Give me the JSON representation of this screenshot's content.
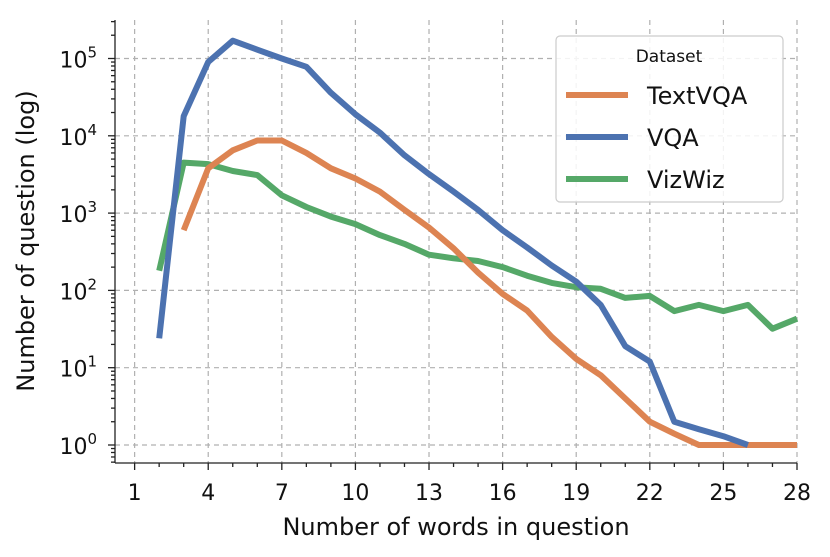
{
  "chart_data": {
    "type": "line",
    "xlabel": "Number of words in question",
    "ylabel": "Number of question (log)",
    "yscale": "log",
    "xlim": [
      0.2,
      28
    ],
    "ylim_exponent": [
      -0.23,
      0.6
    ],
    "x_ticks": [
      1,
      4,
      7,
      10,
      13,
      16,
      19,
      22,
      25,
      28
    ],
    "y_ticks": [
      {
        "value": 1,
        "base": "10",
        "exp": "0"
      },
      {
        "value": 10,
        "base": "10",
        "exp": "1"
      },
      {
        "value": 100,
        "base": "10",
        "exp": "2"
      },
      {
        "value": 1000,
        "base": "10",
        "exp": "3"
      },
      {
        "value": 10000,
        "base": "10",
        "exp": "4"
      },
      {
        "value": 100000,
        "base": "10",
        "exp": "5"
      }
    ],
    "grid": true,
    "legend": {
      "title": "Dataset",
      "position": "top-right"
    },
    "series": [
      {
        "name": "TextVQA",
        "color": "#dd8452",
        "x": [
          3,
          4,
          5,
          6,
          7,
          8,
          9,
          10,
          11,
          12,
          13,
          14,
          15,
          16,
          17,
          18,
          19,
          20,
          21,
          22,
          23,
          24,
          25,
          26,
          27,
          28
        ],
        "y": [
          600,
          3800,
          6500,
          8700,
          8700,
          6000,
          3800,
          2800,
          1900,
          1100,
          650,
          350,
          170,
          90,
          55,
          25,
          13,
          8,
          4,
          2,
          1.4,
          1,
          1,
          1,
          1,
          1
        ]
      },
      {
        "name": "VQA",
        "color": "#4c72b0",
        "x": [
          2,
          3,
          4,
          5,
          6,
          7,
          8,
          9,
          10,
          11,
          12,
          13,
          14,
          15,
          16,
          17,
          18,
          19,
          20,
          21,
          22,
          23,
          24,
          25,
          26
        ],
        "y": [
          24,
          18000,
          90000,
          170000,
          130000,
          100000,
          78000,
          36000,
          19000,
          11000,
          5600,
          3200,
          1900,
          1100,
          600,
          360,
          210,
          130,
          65,
          19,
          12,
          2,
          1.6,
          1.3,
          1
        ]
      },
      {
        "name": "VizWiz",
        "color": "#55a868",
        "x": [
          2,
          3,
          4,
          5,
          6,
          7,
          8,
          9,
          10,
          11,
          12,
          13,
          14,
          15,
          16,
          17,
          18,
          19,
          20,
          21,
          22,
          23,
          24,
          25,
          26,
          27,
          28
        ],
        "y": [
          180,
          4500,
          4300,
          3500,
          3100,
          1700,
          1200,
          900,
          720,
          520,
          400,
          290,
          260,
          240,
          200,
          155,
          125,
          110,
          105,
          80,
          85,
          54,
          65,
          54,
          65,
          32,
          43
        ]
      }
    ]
  }
}
